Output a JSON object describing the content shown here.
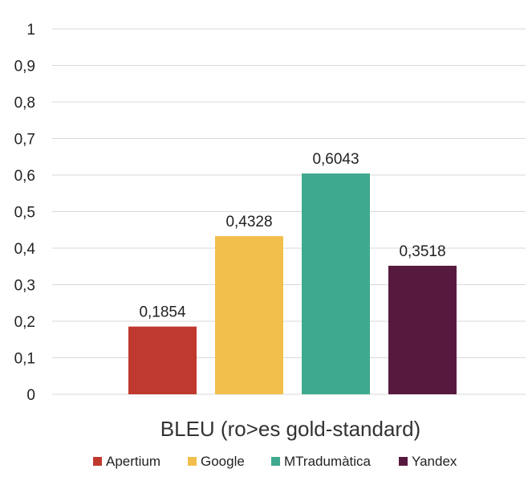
{
  "chart_data": {
    "type": "bar",
    "categories": [
      "Apertium",
      "Google",
      "MTradumàtica",
      "Yandex"
    ],
    "values": [
      0.1854,
      0.4328,
      0.6043,
      0.3518
    ],
    "value_labels": [
      "0,1854",
      "0,4328",
      "0,6043",
      "0,3518"
    ],
    "colors": [
      "#c0392f",
      "#f2be4c",
      "#3fa98f",
      "#571a3f"
    ],
    "xlabel": "BLEU (ro>es gold-standard)",
    "ylabel": "",
    "ylim": [
      0,
      1
    ],
    "yticks": [
      0,
      0.1,
      0.2,
      0.3,
      0.4,
      0.5,
      0.6,
      0.7,
      0.8,
      0.9,
      1
    ],
    "ytick_labels": [
      "0",
      "0,1",
      "0,2",
      "0,3",
      "0,4",
      "0,5",
      "0,6",
      "0,7",
      "0,8",
      "0,9",
      "1"
    ],
    "grid": true,
    "legend": {
      "placement": "bottom",
      "entries": [
        "Apertium",
        "Google",
        "MTradumàtica",
        "Yandex"
      ]
    }
  }
}
